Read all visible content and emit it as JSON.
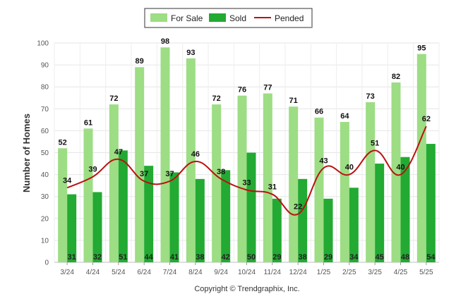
{
  "chart_data": {
    "type": "bar",
    "categories": [
      "3/24",
      "4/24",
      "5/24",
      "6/24",
      "7/24",
      "8/24",
      "9/24",
      "10/24",
      "11/24",
      "12/24",
      "1/25",
      "2/25",
      "3/25",
      "4/25",
      "5/25"
    ],
    "series": [
      {
        "name": "For Sale",
        "type": "bar",
        "color": "#9ddd84",
        "values": [
          52,
          61,
          72,
          89,
          98,
          93,
          72,
          76,
          77,
          71,
          66,
          64,
          73,
          82,
          95
        ]
      },
      {
        "name": "Sold",
        "type": "bar",
        "color": "#22aa33",
        "values": [
          31,
          32,
          51,
          44,
          41,
          38,
          42,
          50,
          29,
          38,
          29,
          34,
          45,
          48,
          54
        ]
      },
      {
        "name": "Pended",
        "type": "line",
        "color": "#bb1111",
        "values": [
          34,
          39,
          47,
          37,
          37,
          46,
          38,
          33,
          31,
          22,
          43,
          40,
          51,
          40,
          62
        ]
      }
    ],
    "ylabel": "Number of Homes",
    "ylim": [
      0,
      100
    ],
    "yticks": [
      0,
      10,
      20,
      30,
      40,
      50,
      60,
      70,
      80,
      90,
      100
    ],
    "grid": true,
    "legend_position": "top-center"
  },
  "footer": {
    "copyright": "Copyright © Trendgraphix, Inc."
  }
}
